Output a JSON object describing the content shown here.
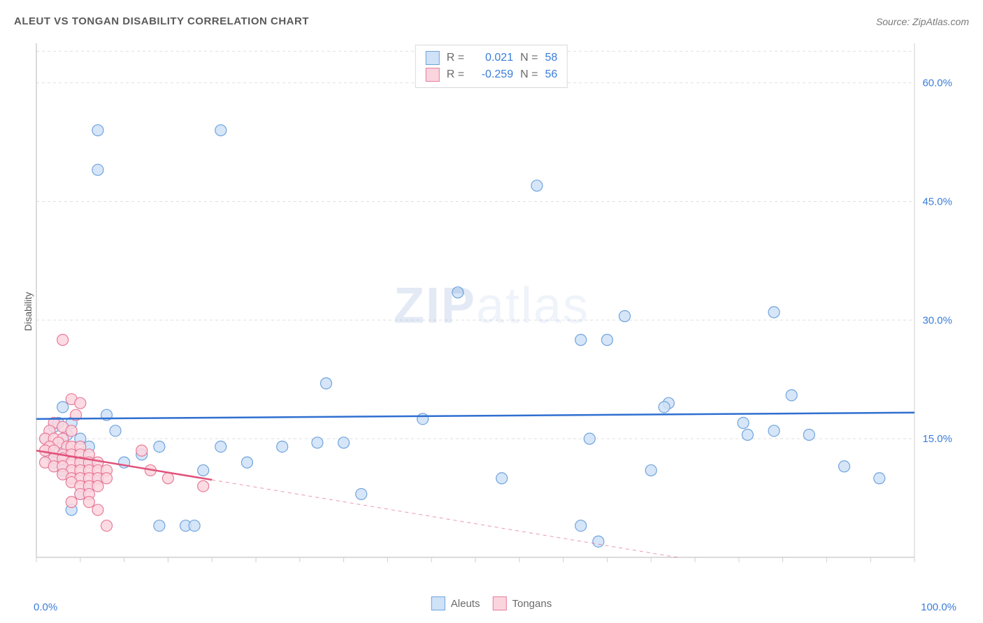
{
  "header": {
    "title": "ALEUT VS TONGAN DISABILITY CORRELATION CHART",
    "source": "Source: ZipAtlas.com"
  },
  "watermark": {
    "part1": "ZIP",
    "part2": "atlas"
  },
  "chart": {
    "type": "scatter",
    "ylabel": "Disability",
    "xlim": [
      0,
      100
    ],
    "ylim": [
      0,
      65
    ],
    "x_tick_step": 5,
    "y_tick_step": 15,
    "x_tick_labels": {
      "0": "0.0%",
      "100": "100.0%"
    },
    "y_tick_labels": {
      "15": "15.0%",
      "30": "30.0%",
      "45": "45.0%",
      "60": "60.0%"
    },
    "background_color": "#ffffff",
    "grid_color": "#e0e0e0",
    "axis_color": "#cfcfcf",
    "label_color_axis": "#3b7dd8",
    "marker_radius": 8,
    "marker_stroke_width": 1.2,
    "series": [
      {
        "name": "Aleuts",
        "fill": "#cfe2f7",
        "stroke": "#6fa3dd",
        "trend_color": "#2f6fd0",
        "trend_width": 2.5,
        "trend": {
          "y_at_x0": 17.5,
          "y_at_x100": 18.3,
          "solid_until_x": 100
        },
        "R": "0.021",
        "N": "58",
        "points": [
          [
            7,
            54
          ],
          [
            21,
            54
          ],
          [
            7,
            49
          ],
          [
            57,
            47
          ],
          [
            48,
            33.5
          ],
          [
            67,
            30.5
          ],
          [
            84,
            31
          ],
          [
            62,
            27.5
          ],
          [
            65,
            27.5
          ],
          [
            33,
            22
          ],
          [
            72,
            19.5
          ],
          [
            71.5,
            19
          ],
          [
            86,
            20.5
          ],
          [
            3,
            19
          ],
          [
            4,
            17
          ],
          [
            5,
            15
          ],
          [
            6,
            14
          ],
          [
            8,
            18
          ],
          [
            9,
            16
          ],
          [
            10,
            12
          ],
          [
            12,
            13
          ],
          [
            14,
            14
          ],
          [
            14,
            4
          ],
          [
            17,
            4
          ],
          [
            18,
            4
          ],
          [
            19,
            11
          ],
          [
            21,
            14
          ],
          [
            24,
            12
          ],
          [
            28,
            14
          ],
          [
            32,
            14.5
          ],
          [
            35,
            14.5
          ],
          [
            37,
            8
          ],
          [
            44,
            17.5
          ],
          [
            53,
            10
          ],
          [
            62,
            4
          ],
          [
            63,
            15
          ],
          [
            64,
            2
          ],
          [
            70,
            11
          ],
          [
            80.5,
            17
          ],
          [
            81,
            15.5
          ],
          [
            84,
            16
          ],
          [
            88,
            15.5
          ],
          [
            92,
            11.5
          ],
          [
            96,
            10
          ],
          [
            1,
            15
          ],
          [
            2,
            16.5
          ],
          [
            3,
            14
          ],
          [
            4,
            13
          ],
          [
            1.5,
            13
          ],
          [
            2.5,
            17
          ],
          [
            3.5,
            15.5
          ],
          [
            5,
            8
          ],
          [
            6,
            9
          ],
          [
            5.5,
            12
          ],
          [
            7,
            10
          ],
          [
            4,
            6
          ],
          [
            3,
            11
          ],
          [
            2,
            12
          ]
        ]
      },
      {
        "name": "Tongans",
        "fill": "#fbd5de",
        "stroke": "#e77c9a",
        "trend_color": "#e0527a",
        "trend_width": 2.5,
        "trend": {
          "y_at_x0": 13.5,
          "y_at_x100": -5,
          "solid_until_x": 20
        },
        "R": "-0.259",
        "N": "56",
        "points": [
          [
            3,
            27.5
          ],
          [
            4,
            20
          ],
          [
            4.5,
            18
          ],
          [
            5,
            19.5
          ],
          [
            2,
            17
          ],
          [
            1.5,
            16
          ],
          [
            3,
            16.5
          ],
          [
            4,
            16
          ],
          [
            1,
            15
          ],
          [
            2,
            15
          ],
          [
            3,
            15
          ],
          [
            2.5,
            14.5
          ],
          [
            1.5,
            14
          ],
          [
            3.5,
            14
          ],
          [
            4,
            14
          ],
          [
            5,
            14
          ],
          [
            1,
            13.5
          ],
          [
            2,
            13.5
          ],
          [
            3,
            13
          ],
          [
            4,
            13
          ],
          [
            5,
            13
          ],
          [
            6,
            13
          ],
          [
            2,
            12.5
          ],
          [
            3,
            12.5
          ],
          [
            4,
            12
          ],
          [
            5,
            12
          ],
          [
            6,
            12
          ],
          [
            7,
            12
          ],
          [
            1,
            12
          ],
          [
            2,
            11.5
          ],
          [
            3,
            11.5
          ],
          [
            4,
            11
          ],
          [
            5,
            11
          ],
          [
            6,
            11
          ],
          [
            7,
            11
          ],
          [
            8,
            11
          ],
          [
            3,
            10.5
          ],
          [
            4,
            10
          ],
          [
            5,
            10
          ],
          [
            6,
            10
          ],
          [
            7,
            10
          ],
          [
            8,
            10
          ],
          [
            4,
            9.5
          ],
          [
            5,
            9
          ],
          [
            6,
            9
          ],
          [
            7,
            9
          ],
          [
            5,
            8
          ],
          [
            6,
            8
          ],
          [
            4,
            7
          ],
          [
            6,
            7
          ],
          [
            7,
            6
          ],
          [
            8,
            4
          ],
          [
            12,
            13.5
          ],
          [
            13,
            11
          ],
          [
            15,
            10
          ],
          [
            19,
            9
          ]
        ]
      }
    ]
  },
  "legend_top": {
    "r_label": "R =",
    "n_label": "N ="
  },
  "bottom_legend": {
    "series1": "Aleuts",
    "series2": "Tongans"
  }
}
